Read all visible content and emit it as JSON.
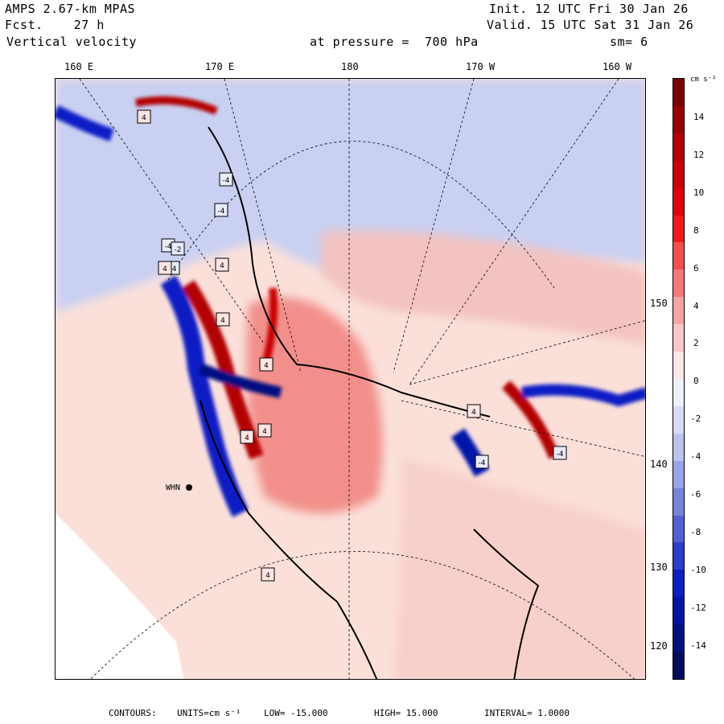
{
  "header": {
    "model": "AMPS 2.67-km MPAS",
    "forecast": "Fcst.    27 h",
    "field": "Vertical velocity",
    "init": "Init. 12 UTC Fri 30 Jan 26",
    "valid": "Valid. 15 UTC Sat 31 Jan 26",
    "pressure": "at pressure =  700 hPa",
    "smoothing": "sm= 6"
  },
  "longitude_labels": [
    "160 E",
    "170 E",
    "180",
    "170 W",
    "160 W"
  ],
  "latitude_labels": [
    "150 W",
    "140 W",
    "130 W",
    "120 W"
  ],
  "colorbar": {
    "units": "cm s⁻¹",
    "ticks": [
      "14",
      "12",
      "10",
      "8",
      "6",
      "4",
      "2",
      "0",
      "-2",
      "-4",
      "-6",
      "-8",
      "-10",
      "-12",
      "-14"
    ],
    "colors": [
      "#7a0000",
      "#9a0000",
      "#b30000",
      "#cc0000",
      "#e00000",
      "#f21a1a",
      "#f74d4d",
      "#f87878",
      "#f9a3a3",
      "#fbc7c7",
      "#fde6e6",
      "#eef0fb",
      "#d6dcf5",
      "#b9c3ee",
      "#98a5e6",
      "#7683dd",
      "#5161d5",
      "#2c3ecd",
      "#0a1fc4",
      "#0014a8",
      "#000f80",
      "#000a60"
    ]
  },
  "station": "WHN",
  "contour_markers": [
    "4",
    "-4",
    "4",
    "-4",
    "-4",
    "-4",
    "-2",
    "4",
    "4",
    "4",
    "4",
    "4",
    "4",
    "-4",
    "4",
    "-4"
  ],
  "footer": {
    "contours": "CONTOURS:",
    "units": "UNITS=cm s⁻¹",
    "low": "LOW= -15.000",
    "high": "HIGH= 15.000",
    "interval": "INTERVAL= 1.0000"
  }
}
